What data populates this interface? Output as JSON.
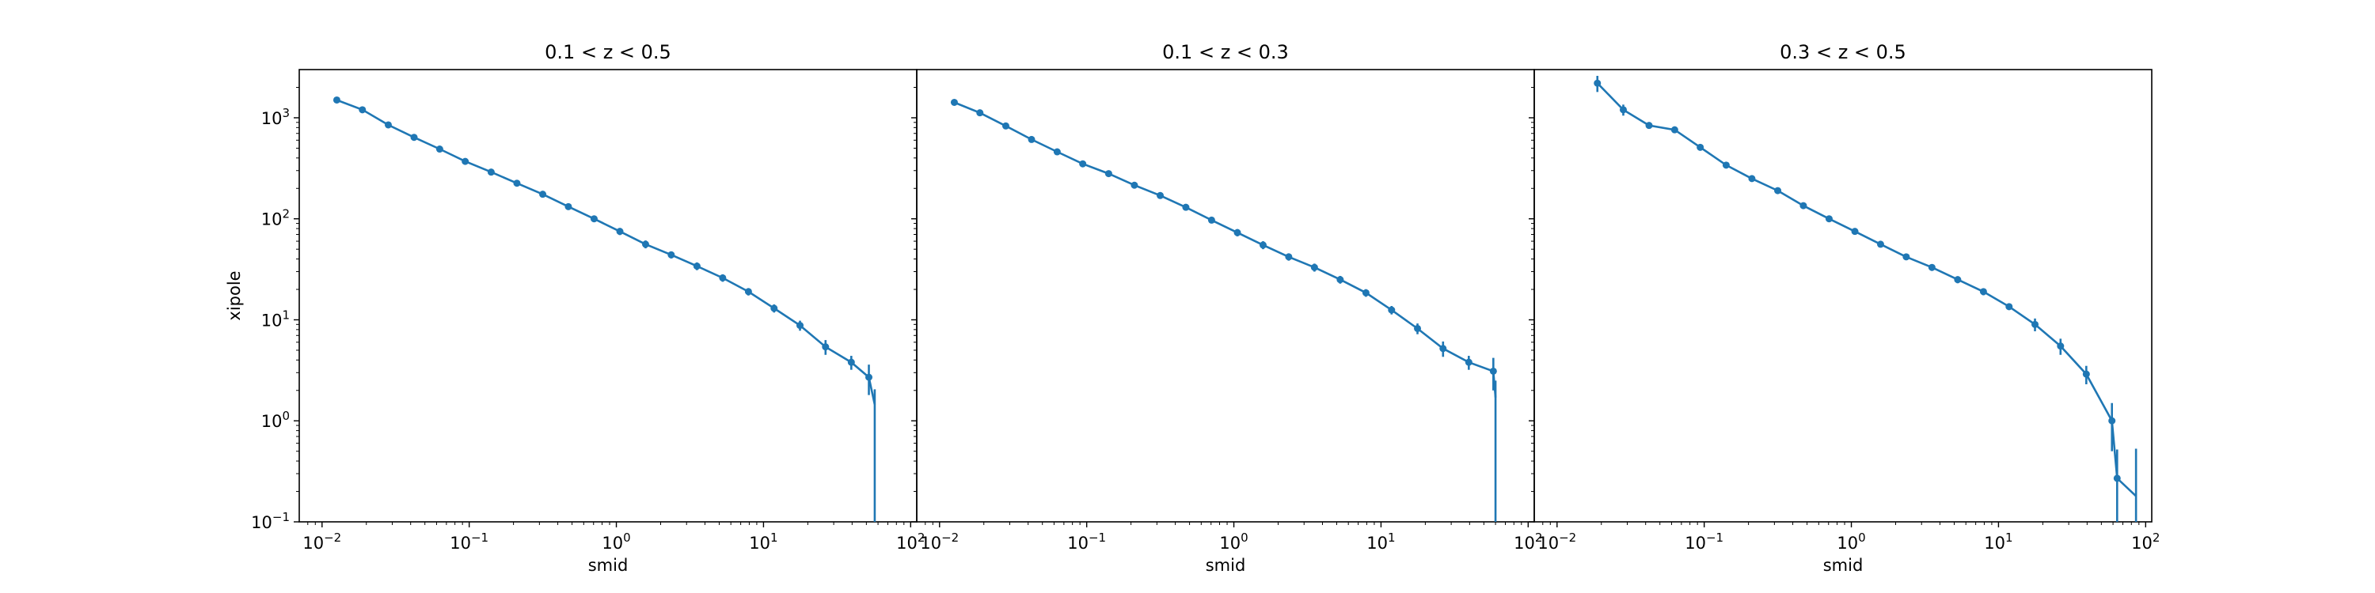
{
  "figure": {
    "ylabel": "xipole",
    "line_color": "#1f77b4"
  },
  "chart_data": [
    {
      "type": "line",
      "title": "0.1 < z < 0.5",
      "xlabel": "smid",
      "ylabel": "xipole",
      "xscale": "log",
      "yscale": "log",
      "xlim": [
        0.007,
        110
      ],
      "ylim": [
        0.1,
        3000
      ],
      "x_ticks": [
        "10^-2",
        "10^-1",
        "10^0",
        "10^1",
        "10^2"
      ],
      "y_ticks": [
        "10^-1",
        "10^0",
        "10^1",
        "10^2",
        "10^3"
      ],
      "grid": false,
      "series": [
        {
          "x": [
            0.0126,
            0.0188,
            0.0282,
            0.0422,
            0.063,
            0.094,
            0.141,
            0.211,
            0.316,
            0.472,
            0.706,
            1.057,
            1.58,
            2.36,
            3.53,
            5.28,
            7.9,
            11.8,
            17.7,
            26.4,
            39.5,
            52
          ],
          "y": [
            1500,
            1200,
            850,
            640,
            490,
            370,
            290,
            225,
            175,
            132,
            100,
            75,
            56,
            44,
            34,
            26,
            19,
            13,
            8.8,
            5.4,
            3.8,
            2.7
          ],
          "yerr": [
            40,
            30,
            25,
            18,
            15,
            12,
            9,
            7,
            6,
            5,
            5,
            6,
            5,
            3.5,
            3,
            2.2,
            1.6,
            1.2,
            1.0,
            0.9,
            0.6,
            0.9
          ],
          "extra": {
            "x": 57,
            "y": 1.45,
            "yerr_low": 1.45,
            "yerr_high": 0.6
          }
        }
      ]
    },
    {
      "type": "line",
      "title": "0.1 < z < 0.3",
      "xlabel": "smid",
      "ylabel": "",
      "xscale": "log",
      "yscale": "log",
      "xlim": [
        0.007,
        110
      ],
      "ylim": [
        0.1,
        3000
      ],
      "x_ticks": [
        "10^-2",
        "10^-1",
        "10^0",
        "10^1",
        "10^2"
      ],
      "y_ticks": [],
      "grid": false,
      "series": [
        {
          "x": [
            0.0126,
            0.0188,
            0.0282,
            0.0422,
            0.063,
            0.094,
            0.141,
            0.211,
            0.316,
            0.472,
            0.706,
            1.057,
            1.58,
            2.36,
            3.53,
            5.28,
            7.9,
            11.8,
            17.7,
            26.4,
            39.5,
            58
          ],
          "y": [
            1420,
            1120,
            830,
            610,
            460,
            350,
            280,
            215,
            170,
            130,
            97,
            73,
            55,
            42,
            33,
            25,
            18.5,
            12.5,
            8.2,
            5.2,
            3.8,
            3.1
          ],
          "yerr": [
            40,
            30,
            25,
            18,
            15,
            12,
            9,
            7,
            6,
            5,
            5,
            6,
            5,
            3.5,
            3,
            2.2,
            1.6,
            1.2,
            1.0,
            0.9,
            0.6,
            1.1
          ],
          "extra": {
            "x": 60,
            "y": 1.7,
            "yerr_low": 1.7,
            "yerr_high": 0.8
          }
        }
      ]
    },
    {
      "type": "line",
      "title": "0.3 < z < 0.5",
      "xlabel": "smid",
      "ylabel": "",
      "xscale": "log",
      "yscale": "log",
      "xlim": [
        0.007,
        110
      ],
      "ylim": [
        0.1,
        3000
      ],
      "x_ticks": [
        "10^-2",
        "10^-1",
        "10^0",
        "10^1",
        "10^2"
      ],
      "y_ticks": [],
      "grid": false,
      "series": [
        {
          "x": [
            0.0188,
            0.0282,
            0.0422,
            0.063,
            0.094,
            0.141,
            0.211,
            0.316,
            0.472,
            0.706,
            1.057,
            1.58,
            2.36,
            3.53,
            5.28,
            7.9,
            11.8,
            17.7,
            26.4,
            39.5,
            59,
            64
          ],
          "y": [
            2200,
            1200,
            840,
            760,
            510,
            340,
            250,
            190,
            135,
            100,
            75,
            56,
            42,
            33,
            25,
            19,
            13.5,
            9.0,
            5.5,
            2.9,
            1.0,
            0.27
          ],
          "yerr": [
            400,
            150,
            50,
            40,
            20,
            15,
            10,
            8,
            5,
            5,
            5,
            4,
            3,
            2.5,
            2,
            1.5,
            1.0,
            1.3,
            1.0,
            0.6,
            0.5,
            0.25
          ],
          "extra": {
            "x": 86,
            "y": 0.18,
            "yerr_low": 0.1,
            "yerr_high": 0.35
          }
        }
      ]
    }
  ]
}
